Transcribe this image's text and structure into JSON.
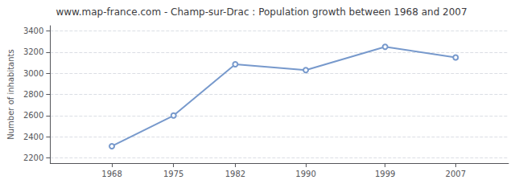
{
  "chart_data": {
    "type": "line",
    "title": "www.map-france.com - Champ-sur-Drac : Population growth between 1968 and 2007",
    "x": [
      1968,
      1975,
      1982,
      1990,
      1999,
      2007
    ],
    "values": [
      2310,
      2600,
      3085,
      3030,
      3250,
      3150
    ],
    "ylabel": "Number of inhabitants",
    "xlim": [
      1961,
      2013
    ],
    "xticks": [
      1968,
      1975,
      1982,
      1990,
      1999,
      2007
    ],
    "ylim": [
      2150,
      3450
    ],
    "yticks": [
      2200,
      2400,
      2600,
      2800,
      3000,
      3200,
      3400
    ],
    "color": "#7799cc",
    "marker": "circle",
    "grid": true
  }
}
